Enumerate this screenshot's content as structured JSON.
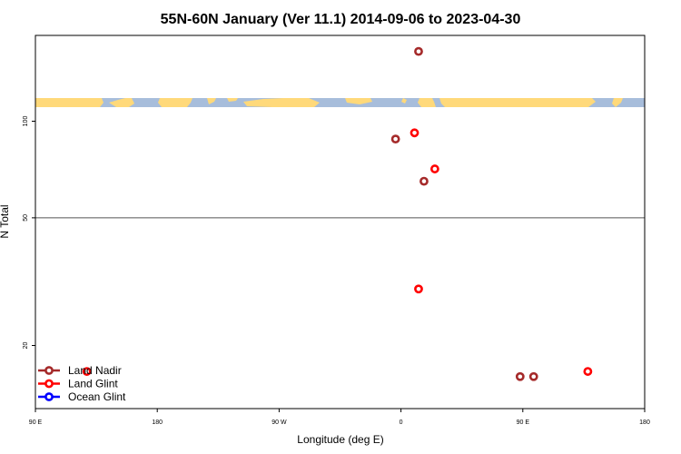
{
  "chart_data": {
    "type": "scatter",
    "title": "55N-60N January (Ver 11.1)   2014-09-06 to 2023-04-30",
    "xlabel": "Longitude (deg E)",
    "ylabel": "N Total",
    "x_tick_labels": [
      "90 E",
      "180",
      "90 W",
      "0",
      "90 E",
      "180"
    ],
    "y_tick_labels": [
      "20",
      "50",
      "100"
    ],
    "y_scale": "log",
    "reference_line_y": 50,
    "grid": false,
    "legend_placement": "bottom-left",
    "series": [
      {
        "name": "Land Nadir",
        "color": "#a52a2a",
        "points": [
          {
            "lon": 13,
            "n": 165
          },
          {
            "lon": -4,
            "n": 88
          },
          {
            "lon": 17,
            "n": 65
          },
          {
            "lon": 88,
            "n": 16
          },
          {
            "lon": 98,
            "n": 16
          }
        ]
      },
      {
        "name": "Land Glint",
        "color": "#ff0000",
        "points": [
          {
            "lon": 10,
            "n": 92
          },
          {
            "lon": 25,
            "n": 71
          },
          {
            "lon": 13,
            "n": 30
          },
          {
            "lon": -232,
            "n": 16.6
          },
          {
            "lon": 138,
            "n": 16.6
          }
        ]
      },
      {
        "name": "Ocean Glint",
        "color": "#0000ff",
        "points": []
      }
    ],
    "map_strip": {
      "land_color": "#ffd97a",
      "ocean_color": "#a7bddb"
    }
  }
}
